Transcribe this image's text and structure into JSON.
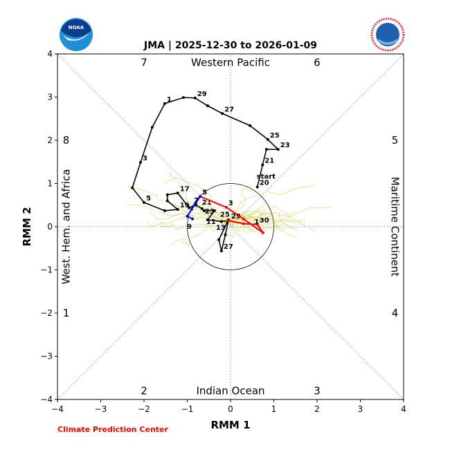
{
  "chart_data": {
    "type": "line",
    "title": "JMA | 2025-12-30 to 2026-01-09",
    "xlabel": "RMM 1",
    "ylabel": "RMM 2",
    "xlim": [
      -4,
      4
    ],
    "ylim": [
      -4,
      4
    ],
    "xticks": [
      "−4",
      "−3",
      "−2",
      "−1",
      "0",
      "1",
      "2",
      "3",
      "4"
    ],
    "yticks": [
      "−4",
      "−3",
      "−2",
      "−1",
      "0",
      "1",
      "2",
      "3",
      "4"
    ],
    "phases": [
      {
        "label": "1",
        "x": -3.8,
        "y": -2
      },
      {
        "label": "2",
        "x": -2,
        "y": -3.8
      },
      {
        "label": "3",
        "x": 2,
        "y": -3.8
      },
      {
        "label": "4",
        "x": 3.8,
        "y": -2
      },
      {
        "label": "5",
        "x": 3.8,
        "y": 2
      },
      {
        "label": "6",
        "x": 2,
        "y": 3.8
      },
      {
        "label": "7",
        "x": -2,
        "y": 3.8
      },
      {
        "label": "8",
        "x": -3.8,
        "y": 2
      }
    ],
    "regions": {
      "top": "Western Pacific",
      "bottom": "Indian Ocean",
      "left": "West. Hem. and Africa",
      "right": "Maritime Continent"
    },
    "start_label": "start",
    "series": [
      {
        "name": "observed",
        "color": "#000000",
        "points": [
          [
            0.62,
            0.92,
            "20"
          ],
          [
            0.74,
            1.43,
            "21"
          ],
          [
            0.83,
            1.79,
            ""
          ],
          [
            1.1,
            1.79,
            "23"
          ],
          [
            0.86,
            2.02,
            "25"
          ],
          [
            0.45,
            2.34,
            ""
          ],
          [
            -0.19,
            2.62,
            "27"
          ],
          [
            -0.53,
            2.8,
            ""
          ],
          [
            -0.82,
            2.98,
            "29"
          ],
          [
            -1.09,
            2.99,
            ""
          ],
          [
            -1.52,
            2.85,
            "1"
          ],
          [
            -1.81,
            2.3,
            ""
          ],
          [
            -2.08,
            1.49,
            "3"
          ],
          [
            -2.27,
            0.9,
            ""
          ],
          [
            -2.0,
            0.56,
            "5"
          ],
          [
            -1.52,
            0.37,
            ""
          ],
          [
            -1.22,
            0.4,
            "19"
          ],
          [
            -1.46,
            0.6,
            ""
          ],
          [
            -1.46,
            0.74,
            ""
          ],
          [
            -1.22,
            0.78,
            "17"
          ],
          [
            -0.96,
            0.44,
            ""
          ],
          [
            -0.8,
            0.5,
            "7"
          ],
          [
            -0.66,
            0.42,
            "21"
          ],
          [
            -0.61,
            0.37,
            "23"
          ],
          [
            -0.37,
            0.37,
            ""
          ],
          [
            -0.53,
            0.16,
            "11"
          ],
          [
            -0.21,
            0.12,
            "13"
          ],
          [
            -0.05,
            0.14,
            "25"
          ],
          [
            -0.12,
            -0.19,
            ""
          ],
          [
            -0.21,
            -0.56,
            "27"
          ],
          [
            -0.27,
            -0.3,
            ""
          ],
          [
            -0.05,
            0.16,
            "29"
          ]
        ]
      },
      {
        "name": "forecast-mean",
        "color": "#ff0000",
        "points": [
          [
            -0.05,
            0.14,
            ""
          ],
          [
            0.3,
            0.07,
            ""
          ],
          [
            0.62,
            0.05,
            "30"
          ],
          [
            0.75,
            -0.14,
            ""
          ],
          [
            0.3,
            0.18,
            ""
          ],
          [
            -0.1,
            0.45,
            "3"
          ],
          [
            -0.7,
            0.7,
            "5"
          ]
        ]
      },
      {
        "name": "forecast-extension",
        "color": "#0000ff",
        "points": [
          [
            -0.7,
            0.7,
            ""
          ],
          [
            -0.8,
            0.55,
            ""
          ],
          [
            -0.9,
            0.4,
            ""
          ],
          [
            -1.0,
            0.24,
            ""
          ],
          [
            -0.88,
            0.18,
            "9"
          ]
        ]
      }
    ],
    "extra_labels": [
      {
        "label": "1",
        "x": 0.55,
        "y": 0.05
      }
    ],
    "ensemble_color": "#cccc33",
    "ensemble_members": 30
  },
  "footer": {
    "credit": "Climate Prediction Center"
  },
  "logos": {
    "left": "NOAA",
    "right": "NATIONAL WEATHER SERVICE"
  }
}
